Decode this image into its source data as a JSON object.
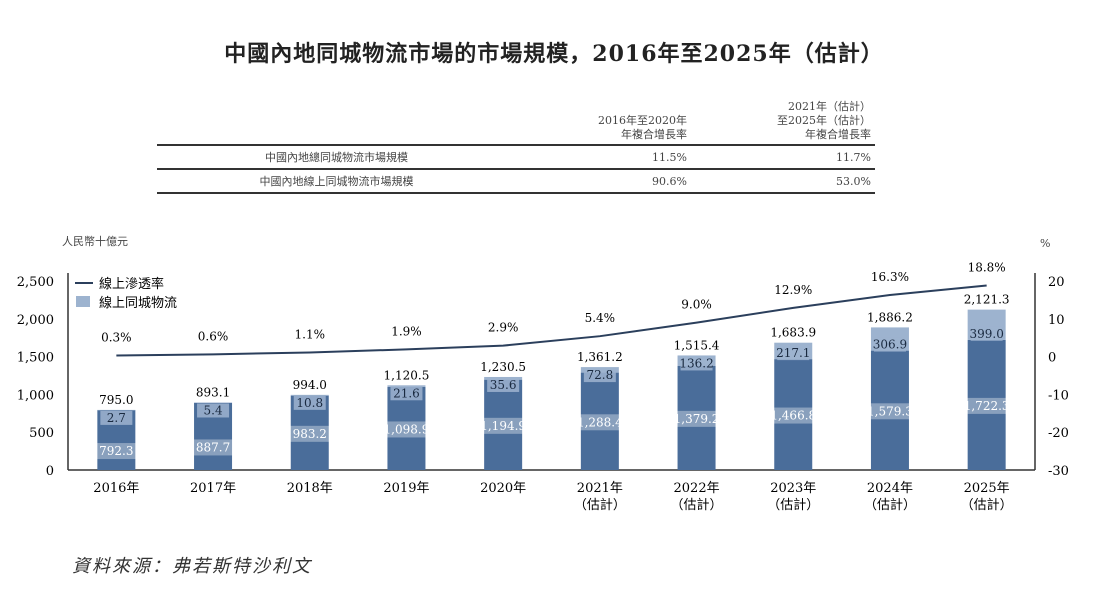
{
  "title": "中國內地同城物流市場的市場規模，2016年至2025年（估計）",
  "cagr_table": {
    "headers": [
      "",
      "2016年至2020年\n年複合增長率",
      "2021年（估計）\n至2025年（估計）\n年複合增長率"
    ],
    "header1": [
      "2016年至2020年",
      "年複合增長率"
    ],
    "header2": [
      "2021年（估計）",
      "至2025年（估計）",
      "年複合增長率"
    ],
    "rows": [
      {
        "label": "中國內地總同城物流市場規模",
        "v1": "11.5%",
        "v2": "11.7%"
      },
      {
        "label": "中國內地線上同城物流市場規模",
        "v1": "90.6%",
        "v2": "53.0%"
      }
    ]
  },
  "source": "資料來源：弗若斯特沙利文",
  "chart_data": {
    "type": "bar",
    "ylabel": "人民幣十億元",
    "y2label": "%",
    "ylim": [
      0,
      2500
    ],
    "y2lim": [
      -30,
      20
    ],
    "yticks": [
      "0",
      "500",
      "1,000",
      "1,500",
      "2,000",
      "2,500"
    ],
    "y2ticks": [
      "-30",
      "-20",
      "-10",
      "0",
      "10",
      "20"
    ],
    "categories": [
      [
        "2016年"
      ],
      [
        "2017年"
      ],
      [
        "2018年"
      ],
      [
        "2019年"
      ],
      [
        "2020年"
      ],
      [
        "2021年",
        "（估計）"
      ],
      [
        "2022年",
        "（估計）"
      ],
      [
        "2023年",
        "（估計）"
      ],
      [
        "2024年",
        "（估計）"
      ],
      [
        "2025年",
        "（估計）"
      ]
    ],
    "legend": {
      "placement": "top-left",
      "line": "線上滲透率",
      "bar": "線上同城物流"
    },
    "totals": [
      795.0,
      893.1,
      994.0,
      1120.5,
      1230.5,
      1361.2,
      1515.4,
      1683.9,
      1886.2,
      2121.3
    ],
    "total_labels": [
      "795.0",
      "893.1",
      "994.0",
      "1,120.5",
      "1,230.5",
      "1,361.2",
      "1,515.4",
      "1,683.9",
      "1,886.2",
      "2,121.3"
    ],
    "series": [
      {
        "name": "offline",
        "values": [
          792.3,
          887.7,
          983.2,
          1098.9,
          1194.9,
          1288.4,
          1379.2,
          1466.8,
          1579.3,
          1722.3
        ],
        "labels": [
          "792.3",
          "887.7",
          "983.2",
          "1,098.9",
          "1,194.9",
          "1,288.4",
          "1,379.2",
          "1,466.8",
          "1,579.3",
          "1,722.3"
        ],
        "color": "#4a6d9a"
      },
      {
        "name": "線上同城物流",
        "values": [
          2.7,
          5.4,
          10.8,
          21.6,
          35.6,
          72.8,
          136.2,
          217.1,
          306.9,
          399.0
        ],
        "labels": [
          "2.7",
          "5.4",
          "10.8",
          "21.6",
          "35.6",
          "72.8",
          "136.2",
          "217.1",
          "306.9",
          "399.0"
        ],
        "color": "#9db3cf"
      },
      {
        "name": "線上滲透率",
        "type": "line",
        "axis": "right",
        "values": [
          0.3,
          0.6,
          1.1,
          1.9,
          2.9,
          5.4,
          9.0,
          12.9,
          16.3,
          18.8
        ],
        "labels": [
          "0.3%",
          "0.6%",
          "1.1%",
          "1.9%",
          "2.9%",
          "5.4%",
          "9.0%",
          "12.9%",
          "16.3%",
          "18.8%"
        ],
        "color": "#2b3f5c"
      }
    ]
  }
}
